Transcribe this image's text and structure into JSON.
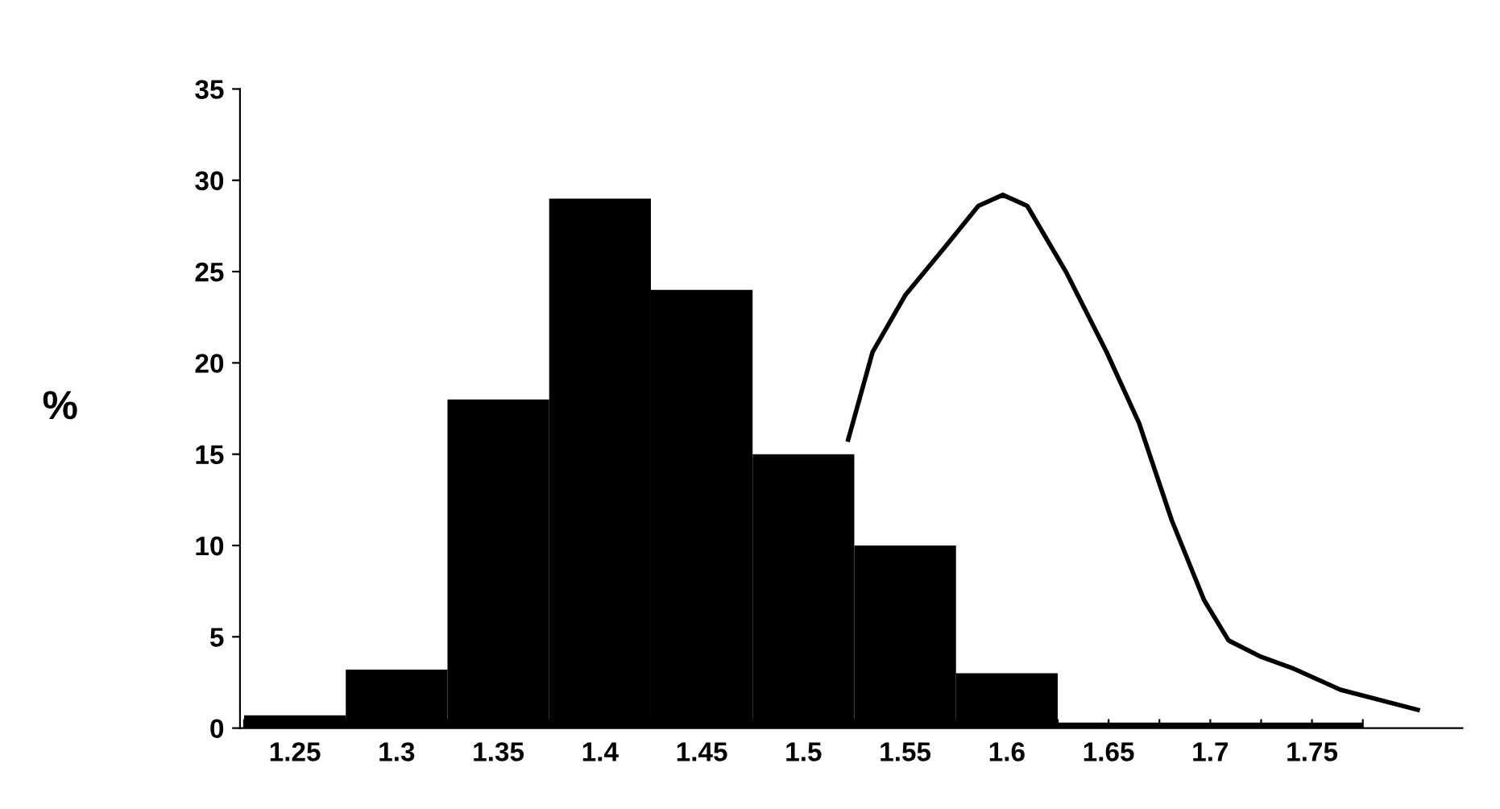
{
  "chart_data": {
    "type": "histogram",
    "ylabel": "%",
    "bins": [
      1.225,
      1.275,
      1.325,
      1.375,
      1.425,
      1.475,
      1.525,
      1.575,
      1.625,
      1.675,
      1.725,
      1.775
    ],
    "values": [
      0.7,
      3.2,
      18,
      29,
      24,
      15,
      10,
      3,
      0.3,
      0.3,
      0.3
    ],
    "color": "#000000",
    "series": [
      {
        "type": "line",
        "color": "#000000",
        "x": [
          1.522,
          1.534,
          1.55,
          1.57,
          1.586,
          1.598,
          1.61,
          1.629,
          1.649,
          1.665,
          1.681,
          1.697,
          1.709,
          1.725,
          1.74,
          1.764,
          1.802
        ],
        "values": [
          15.8,
          20.6,
          23.7,
          26.4,
          28.6,
          29.2,
          28.6,
          25.0,
          20.6,
          16.7,
          11.4,
          7.0,
          4.8,
          3.9,
          3.3,
          2.1,
          1.0
        ]
      }
    ],
    "xlim": [
      1.223,
      1.824
    ],
    "ylim": [
      0,
      35
    ],
    "xticks": [
      {
        "value": 1.225,
        "label": null
      },
      1.25,
      {
        "value": 1.275,
        "label": null
      },
      1.3,
      {
        "value": 1.325,
        "label": null
      },
      1.35,
      {
        "value": 1.375,
        "label": null
      },
      1.4,
      {
        "value": 1.425,
        "label": null
      },
      1.45,
      {
        "value": 1.475,
        "label": null
      },
      1.5,
      {
        "value": 1.525,
        "label": null
      },
      1.55,
      {
        "value": 1.575,
        "label": null
      },
      1.6,
      {
        "value": 1.625,
        "label": null
      },
      1.65,
      {
        "value": 1.675,
        "label": null
      },
      1.7,
      {
        "value": 1.725,
        "label": null
      },
      1.75,
      {
        "value": 1.775,
        "label": null
      }
    ],
    "yticks": [
      0,
      5,
      10,
      15,
      20,
      25,
      30,
      35
    ],
    "grid": false
  }
}
